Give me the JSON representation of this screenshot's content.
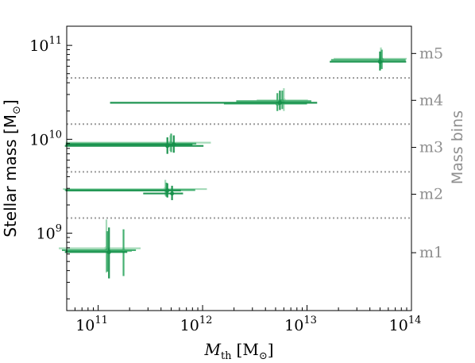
{
  "chart_data": {
    "type": "scatter",
    "xlabel": "M",
    "xlabel_sub": "th",
    "xlabel_unit": "[M",
    "xlabel_unit_sub": "⊙",
    "xlabel_unit_close": "]",
    "ylabel": "Stellar mass [M",
    "ylabel_sub": "⊙",
    "ylabel_close": "]",
    "right_ylabel": "Mass bins",
    "x_scale": "log",
    "y_scale": "log",
    "xlim": [
      50000000000.0,
      100000000000000.0
    ],
    "ylim": [
      150000000.0,
      160000000000.0
    ],
    "x_ticks": [
      {
        "value": 100000000000.0,
        "base": "10",
        "exp": "11"
      },
      {
        "value": 1000000000000.0,
        "base": "10",
        "exp": "12"
      },
      {
        "value": 10000000000000.0,
        "base": "10",
        "exp": "13"
      },
      {
        "value": 100000000000000.0,
        "base": "10",
        "exp": "14"
      }
    ],
    "y_ticks": [
      {
        "value": 1000000000.0,
        "base": "10",
        "exp": "9"
      },
      {
        "value": 10000000000.0,
        "base": "10",
        "exp": "10"
      },
      {
        "value": 100000000000.0,
        "base": "10",
        "exp": "11"
      }
    ],
    "bin_boundaries": [
      1450000000.0,
      4500000000.0,
      14500000000.0,
      45000000000.0
    ],
    "bins": [
      {
        "label": "m1",
        "value": 620000000.0
      },
      {
        "label": "m2",
        "value": 2600000000.0
      },
      {
        "label": "m3",
        "value": 8200000000.0
      },
      {
        "label": "m4",
        "value": 26000000000.0
      },
      {
        "label": "m5",
        "value": 82000000000.0
      }
    ],
    "colors": {
      "dark": "#15904a",
      "mid": "#3cac6a",
      "light": "#8fd1a7",
      "grid": "#9a9a9a"
    },
    "series": [
      {
        "shade": "light",
        "x": 120000000000.0,
        "y": 690000000.0,
        "xerr": [
          42000000000.0,
          255000000000.0
        ],
        "yerr": [
          380000000.0,
          1400000000.0
        ]
      },
      {
        "shade": "mid",
        "x": 122000000000.0,
        "y": 660000000.0,
        "xerr": [
          45000000000.0,
          230000000000.0
        ],
        "yerr": [
          390000000.0,
          1050000000.0
        ]
      },
      {
        "shade": "dark",
        "x": 127000000000.0,
        "y": 630000000.0,
        "xerr": [
          48000000000.0,
          190000000000.0
        ],
        "yerr": [
          330000000.0,
          1150000000.0
        ]
      },
      {
        "shade": "mid",
        "x": 175000000000.0,
        "y": 650000000.0,
        "xerr": [
          49000000000.0,
          210000000000.0
        ],
        "yerr": [
          350000000.0,
          1100000000.0
        ]
      },
      {
        "shade": "light",
        "x": 440000000000.0,
        "y": 2950000000.0,
        "xerr": [
          46000000000.0,
          1100000000000.0
        ],
        "yerr": [
          2500000000.0,
          3700000000.0
        ]
      },
      {
        "shade": "mid",
        "x": 450000000000.0,
        "y": 2880000000.0,
        "xerr": [
          48000000000.0,
          850000000000.0
        ],
        "yerr": [
          2450000000.0,
          3450000000.0
        ]
      },
      {
        "shade": "dark",
        "x": 460000000000.0,
        "y": 2850000000.0,
        "xerr": [
          49000000000.0,
          620000000000.0
        ],
        "yerr": [
          2400000000.0,
          3400000000.0
        ]
      },
      {
        "shade": "dark",
        "x": 510000000000.0,
        "y": 2650000000.0,
        "xerr": [
          270000000000.0,
          650000000000.0
        ],
        "yerr": [
          2250000000.0,
          3200000000.0
        ]
      },
      {
        "shade": "light",
        "x": 490000000000.0,
        "y": 9200000000.0,
        "xerr": [
          49000000000.0,
          1200000000000.0
        ],
        "yerr": [
          7500000000.0,
          11000000000.0
        ]
      },
      {
        "shade": "mid",
        "x": 500000000000.0,
        "y": 9000000000.0,
        "xerr": [
          49000000000.0,
          870000000000.0
        ],
        "yerr": [
          7300000000.0,
          11500000000.0
        ]
      },
      {
        "shade": "dark",
        "x": 460000000000.0,
        "y": 8500000000.0,
        "xerr": [
          48000000000.0,
          1020000000000.0
        ],
        "yerr": [
          7000000000.0,
          10500000000.0
        ]
      },
      {
        "shade": "dark",
        "x": 530000000000.0,
        "y": 8800000000.0,
        "xerr": [
          49000000000.0,
          800000000000.0
        ],
        "yerr": [
          7200000000.0,
          11000000000.0
        ]
      },
      {
        "shade": "light",
        "x": 6000000000000.0,
        "y": 26000000000.0,
        "xerr": [
          3300000000000.0,
          10200000000000.0
        ],
        "yerr": [
          20000000000.0,
          35000000000.0
        ]
      },
      {
        "shade": "mid",
        "x": 5800000000000.0,
        "y": 25500000000.0,
        "xerr": [
          2100000000000.0,
          11000000000000.0
        ],
        "yerr": [
          21000000000.0,
          33000000000.0
        ]
      },
      {
        "shade": "dark",
        "x": 5500000000000.0,
        "y": 24500000000.0,
        "xerr": [
          130000000000.0,
          12500000000000.0
        ],
        "yerr": [
          20500000000.0,
          33000000000.0
        ]
      },
      {
        "shade": "mid",
        "x": 5200000000000.0,
        "y": 24000000000.0,
        "xerr": [
          1600000000000.0,
          10000000000000.0
        ],
        "yerr": [
          20000000000.0,
          31000000000.0
        ]
      },
      {
        "shade": "light",
        "x": 51000000000000.0,
        "y": 72000000000.0,
        "xerr": [
          18000000000000.0,
          90000000000000.0
        ],
        "yerr": [
          58000000000.0,
          95000000000.0
        ]
      },
      {
        "shade": "mid",
        "x": 52000000000000.0,
        "y": 70000000000.0,
        "xerr": [
          17000000000000.0,
          88000000000000.0
        ],
        "yerr": [
          56000000000.0,
          90000000000.0
        ]
      },
      {
        "shade": "dark",
        "x": 50000000000000.0,
        "y": 67000000000.0,
        "xerr": [
          16500000000000.0,
          89000000000000.0
        ],
        "yerr": [
          54000000000.0,
          86000000000.0
        ]
      }
    ]
  }
}
